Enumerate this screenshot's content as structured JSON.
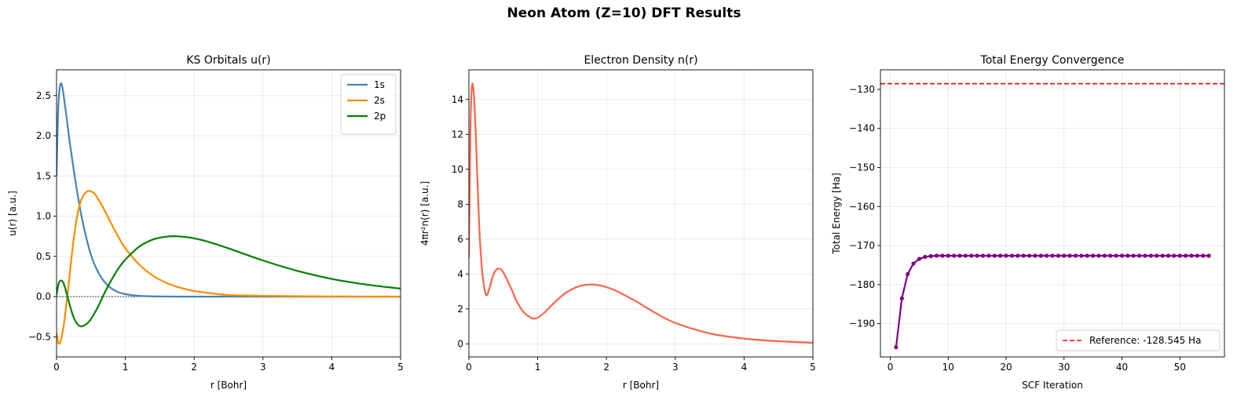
{
  "figure": {
    "title": "Neon Atom (Z=10) DFT Results"
  },
  "chart_data": [
    {
      "type": "line",
      "title": "KS Orbitals u(r)",
      "xlabel": "r [Bohr]",
      "ylabel": "u(r) [a.u.]",
      "xlim": [
        0,
        5
      ],
      "ylim": [
        -0.75,
        2.82
      ],
      "xticks": [
        0,
        1,
        2,
        3,
        4,
        5
      ],
      "yticks": [
        -0.5,
        0.0,
        0.5,
        1.0,
        1.5,
        2.0,
        2.5
      ],
      "grid": true,
      "legend": "top-right",
      "zero_line": true,
      "series": [
        {
          "name": "1s",
          "color": "#4682b4",
          "x": [
            0,
            0.02,
            0.04,
            0.06,
            0.08,
            0.1,
            0.15,
            0.2,
            0.3,
            0.4,
            0.5,
            0.6,
            0.7,
            0.8,
            0.9,
            1.0,
            1.2,
            1.5,
            2.0,
            3.0,
            5.0
          ],
          "y": [
            1.5,
            2.25,
            2.55,
            2.65,
            2.62,
            2.52,
            2.2,
            1.87,
            1.3,
            0.85,
            0.52,
            0.31,
            0.18,
            0.1,
            0.055,
            0.03,
            0.01,
            0.002,
            0.0,
            0.0,
            0.0
          ]
        },
        {
          "name": "2s",
          "color": "#ff8c00",
          "x": [
            0,
            0.03,
            0.06,
            0.1,
            0.15,
            0.2,
            0.25,
            0.3,
            0.35,
            0.4,
            0.45,
            0.5,
            0.55,
            0.6,
            0.7,
            0.8,
            0.9,
            1.0,
            1.2,
            1.4,
            1.6,
            1.8,
            2.0,
            2.25,
            2.5,
            3.0,
            3.5,
            4.0,
            5.0
          ],
          "y": [
            -0.45,
            -0.58,
            -0.55,
            -0.38,
            -0.05,
            0.35,
            0.72,
            1.0,
            1.18,
            1.27,
            1.31,
            1.31,
            1.28,
            1.22,
            1.07,
            0.9,
            0.74,
            0.6,
            0.4,
            0.26,
            0.17,
            0.11,
            0.07,
            0.04,
            0.02,
            0.01,
            0.005,
            0.002,
            0.0
          ]
        },
        {
          "name": "2p",
          "color": "#008000",
          "x": [
            0,
            0.03,
            0.06,
            0.1,
            0.15,
            0.2,
            0.25,
            0.3,
            0.35,
            0.4,
            0.45,
            0.5,
            0.6,
            0.7,
            0.8,
            0.9,
            1.0,
            1.2,
            1.4,
            1.6,
            1.75,
            2.0,
            2.25,
            2.5,
            3.0,
            3.5,
            4.0,
            4.5,
            5.0
          ],
          "y": [
            0.02,
            0.16,
            0.2,
            0.17,
            0.03,
            -0.13,
            -0.26,
            -0.34,
            -0.37,
            -0.36,
            -0.33,
            -0.28,
            -0.13,
            0.05,
            0.21,
            0.35,
            0.46,
            0.62,
            0.71,
            0.745,
            0.75,
            0.725,
            0.67,
            0.6,
            0.45,
            0.32,
            0.22,
            0.15,
            0.1
          ]
        }
      ]
    },
    {
      "type": "line",
      "title": "Electron Density n(r)",
      "xlabel": "r [Bohr]",
      "ylabel": "4πr²n(r) [a.u.]",
      "xlim": [
        0,
        5
      ],
      "ylim": [
        -0.75,
        15.7
      ],
      "xticks": [
        0,
        1,
        2,
        3,
        4,
        5
      ],
      "yticks": [
        0,
        2,
        4,
        6,
        8,
        10,
        12,
        14
      ],
      "grid": true,
      "series": [
        {
          "name": "",
          "color": "#ff6347",
          "x": [
            0,
            0.01,
            0.02,
            0.035,
            0.05,
            0.065,
            0.08,
            0.1,
            0.13,
            0.16,
            0.2,
            0.25,
            0.3,
            0.35,
            0.4,
            0.45,
            0.5,
            0.6,
            0.7,
            0.8,
            0.9,
            0.95,
            1.0,
            1.1,
            1.2,
            1.4,
            1.6,
            1.75,
            1.9,
            2.1,
            2.4,
            2.7,
            3.0,
            3.5,
            4.0,
            4.5,
            5.0
          ],
          "y": [
            4.9,
            8.5,
            11.8,
            14.2,
            14.9,
            14.6,
            13.8,
            12.0,
            8.8,
            6.0,
            3.9,
            2.8,
            3.2,
            3.9,
            4.25,
            4.3,
            4.1,
            3.3,
            2.4,
            1.8,
            1.5,
            1.45,
            1.5,
            1.8,
            2.2,
            2.9,
            3.3,
            3.4,
            3.35,
            3.1,
            2.5,
            1.8,
            1.2,
            0.6,
            0.3,
            0.15,
            0.07
          ]
        }
      ]
    },
    {
      "type": "line",
      "title": "Total Energy Convergence",
      "xlabel": "SCF Iteration",
      "ylabel": "Total Energy [Ha]",
      "xlim": [
        -1.7,
        57.7
      ],
      "ylim": [
        -198.5,
        -125.0
      ],
      "xticks": [
        0,
        10,
        20,
        30,
        40,
        50
      ],
      "yticks": [
        -190,
        -180,
        -170,
        -160,
        -150,
        -140,
        -130
      ],
      "grid": true,
      "legend": "bottom-right",
      "reference": {
        "label": "Reference: -128.545 Ha",
        "value": -128.545,
        "color": "#ff0000"
      },
      "series": [
        {
          "name": "",
          "color": "#800080",
          "markers": true,
          "x": [
            1,
            2,
            3,
            4,
            5,
            6,
            7,
            8,
            9,
            10,
            11,
            12,
            13,
            14,
            15,
            16,
            17,
            18,
            19,
            20,
            21,
            22,
            23,
            24,
            25,
            26,
            27,
            28,
            29,
            30,
            31,
            32,
            33,
            34,
            35,
            36,
            37,
            38,
            39,
            40,
            41,
            42,
            43,
            44,
            45,
            46,
            47,
            48,
            49,
            50,
            51,
            52,
            53,
            54,
            55
          ],
          "y": [
            -196.0,
            -183.5,
            -177.3,
            -174.6,
            -173.4,
            -172.9,
            -172.7,
            -172.6,
            -172.6,
            -172.6,
            -172.6,
            -172.6,
            -172.6,
            -172.6,
            -172.6,
            -172.6,
            -172.6,
            -172.6,
            -172.6,
            -172.6,
            -172.6,
            -172.6,
            -172.6,
            -172.6,
            -172.6,
            -172.6,
            -172.6,
            -172.6,
            -172.6,
            -172.6,
            -172.6,
            -172.6,
            -172.6,
            -172.6,
            -172.6,
            -172.6,
            -172.6,
            -172.6,
            -172.6,
            -172.6,
            -172.6,
            -172.6,
            -172.6,
            -172.6,
            -172.6,
            -172.6,
            -172.6,
            -172.6,
            -172.6,
            -172.6,
            -172.6,
            -172.6,
            -172.6,
            -172.6,
            -172.6
          ]
        }
      ]
    }
  ]
}
